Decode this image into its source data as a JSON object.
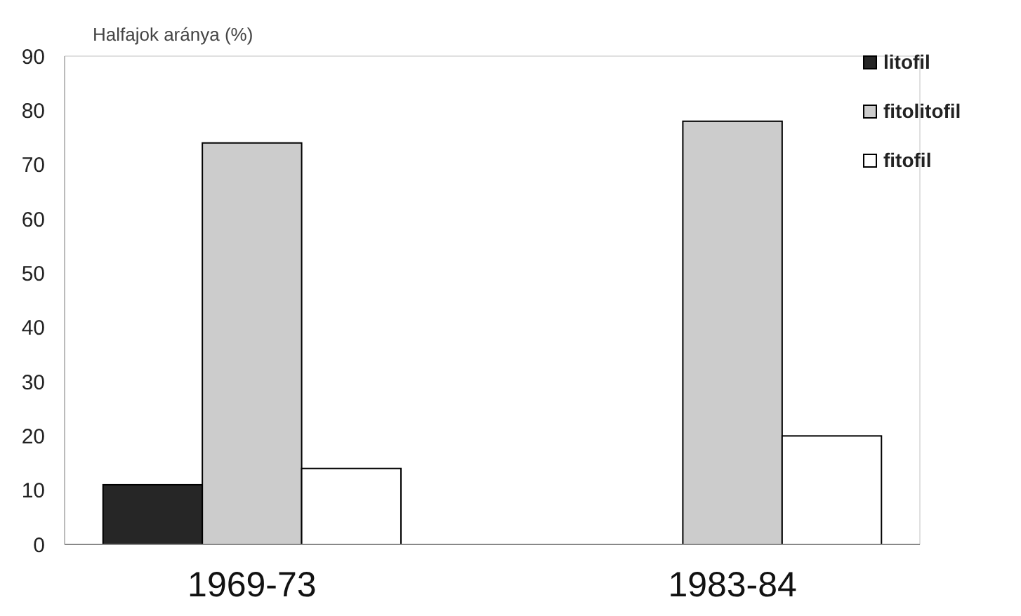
{
  "chart_data": {
    "type": "bar",
    "ylabel": "Halfajok aránya (%)",
    "categories": [
      "1969-73",
      "1983-84"
    ],
    "series": [
      {
        "name": "litofil",
        "color": "#262626",
        "values": [
          11,
          0
        ]
      },
      {
        "name": "fitolitofil",
        "color": "#cccccc",
        "values": [
          74,
          78
        ]
      },
      {
        "name": "fitofil",
        "color": "#ffffff",
        "values": [
          14,
          20
        ]
      }
    ],
    "ylim": [
      0,
      90
    ],
    "yticks": [
      0,
      10,
      20,
      30,
      40,
      50,
      60,
      70,
      80,
      90
    ],
    "legend": "top right"
  }
}
